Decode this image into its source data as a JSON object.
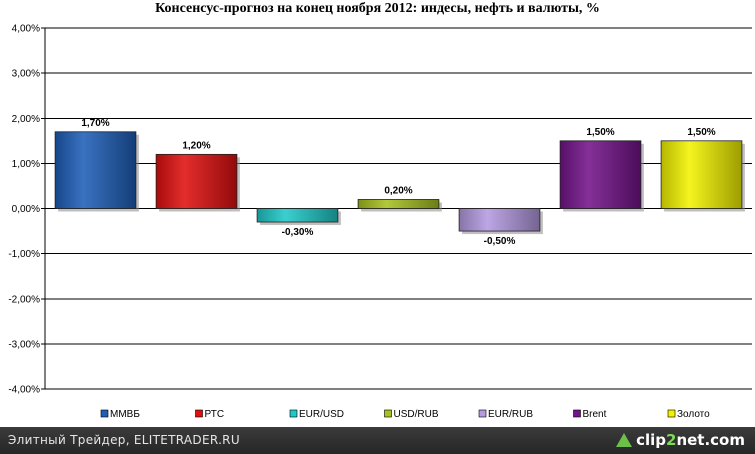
{
  "chart_data": {
    "type": "bar",
    "title": "Консенсус-прогноз на конец ноября 2012: индесы, нефть и валюты, %",
    "xlabel": "",
    "ylabel": "",
    "ylim": [
      -4,
      4
    ],
    "y_ticks": [
      4,
      3,
      2,
      1,
      0,
      -1,
      -2,
      -3,
      -4
    ],
    "y_tick_labels": [
      "4,00%",
      "3,00%",
      "2,00%",
      "1,00%",
      "0,00%",
      "-1,00%",
      "-2,00%",
      "-3,00%",
      "-4,00%"
    ],
    "grid": true,
    "legend": "bottom",
    "categories": [
      "ММВБ",
      "РТС",
      "EUR/USD",
      "USD/RUB",
      "EUR/RUB",
      "Brent",
      "Золото"
    ],
    "values": [
      1.7,
      1.2,
      -0.3,
      0.2,
      -0.5,
      1.5,
      1.5
    ],
    "value_labels": [
      "1,70%",
      "1,20%",
      "-0,30%",
      "0,20%",
      "-0,50%",
      "1,50%",
      "1,50%"
    ],
    "colors": [
      "#1f5fb8",
      "#e01010",
      "#20c8c8",
      "#a8c020",
      "#b49ae0",
      "#74148a",
      "#f2f200"
    ]
  },
  "footer": {
    "caption": "Элитный Трейдер, ELITETRADER.RU",
    "watermark_a": "clip",
    "watermark_b": "2",
    "watermark_c": "net",
    "watermark_d": ".com"
  }
}
